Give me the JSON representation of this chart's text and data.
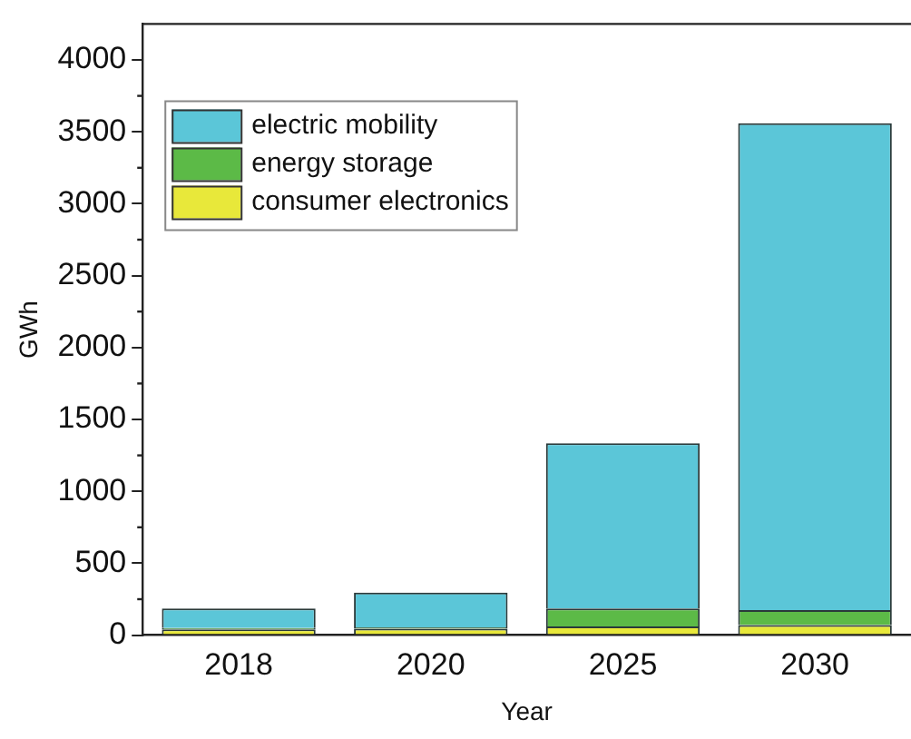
{
  "chart_data": {
    "type": "bar",
    "xlabel": "Year",
    "ylabel": "GWh",
    "categories": [
      "2018",
      "2020",
      "2025",
      "2030"
    ],
    "stacked": true,
    "series": [
      {
        "name": "consumer electronics",
        "color": "#e8e83a",
        "values": [
          40,
          45,
          60,
          70
        ]
      },
      {
        "name": "energy storage",
        "color": "#5cba47",
        "values": [
          10,
          10,
          125,
          105
        ]
      },
      {
        "name": "electric mobility",
        "color": "#5bc6d8",
        "values": [
          135,
          240,
          1150,
          3385
        ]
      }
    ],
    "ylim": [
      0,
      4250
    ],
    "yticks": [
      0,
      500,
      1000,
      1500,
      2000,
      2500,
      3000,
      3500,
      4000
    ],
    "grid": false,
    "legend": "top left"
  }
}
